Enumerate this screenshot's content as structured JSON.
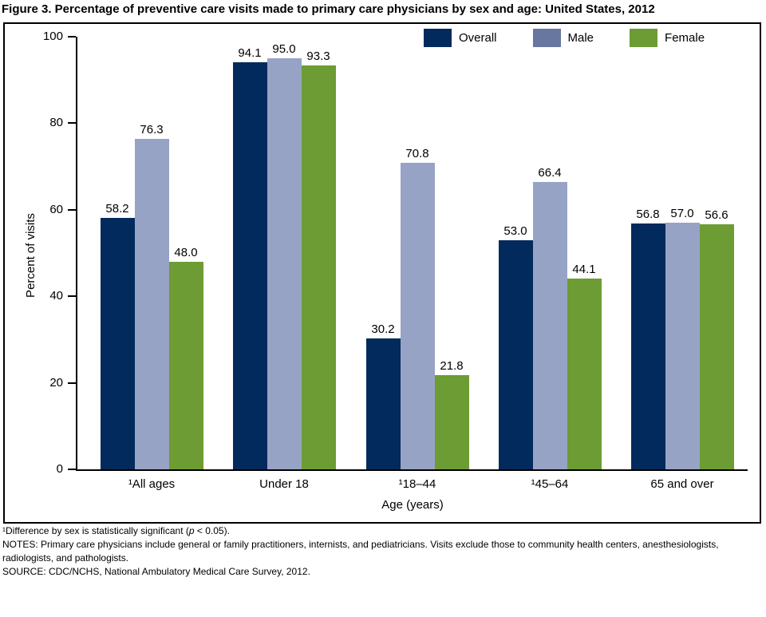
{
  "title": "Figure 3. Percentage of preventive care visits made to primary care physicians by sex and age: United States, 2012",
  "legend": {
    "position": "top-right",
    "items": [
      {
        "label": "Overall",
        "color": "#032A5C"
      },
      {
        "label": "Male",
        "color": "#67779F"
      },
      {
        "label": "Female",
        "color": "#6C9C33"
      }
    ]
  },
  "chart_data": {
    "type": "bar",
    "title": "Figure 3. Percentage of preventive care visits made to primary care physicians by sex and age: United States, 2012",
    "categories": [
      "¹All ages",
      "Under 18",
      "¹18–44",
      "¹45–64",
      "65 and over"
    ],
    "series": [
      {
        "name": "Overall",
        "color": "#032A5C",
        "values": [
          58.2,
          94.1,
          30.2,
          53.0,
          56.8
        ]
      },
      {
        "name": "Male",
        "color": "#97A3C5",
        "values": [
          76.3,
          95.0,
          70.8,
          66.4,
          57.0
        ]
      },
      {
        "name": "Female",
        "color": "#6C9C33",
        "values": [
          48.0,
          93.3,
          21.8,
          44.1,
          56.6
        ]
      }
    ],
    "xlabel": "Age (years)",
    "ylabel": "Percent of visits",
    "ylim": [
      0,
      100
    ],
    "yticks": [
      0,
      20,
      40,
      60,
      80,
      100
    ],
    "grid": false,
    "value_labels": true,
    "value_label_format": "0.0",
    "legend_position": "top-right"
  },
  "footnotes": {
    "significance_pre": "¹Difference by sex is statistically significant (",
    "significance_p": "p",
    "significance_post": " < 0.05).",
    "notes": "NOTES: Primary care physicians include general or family practitioners, internists, and pediatricians. Visits exclude those to community health centers, anesthesiologists, radiologists, and pathologists.",
    "source": "SOURCE: CDC/NCHS, National Ambulatory Medical Care Survey, 2012."
  }
}
